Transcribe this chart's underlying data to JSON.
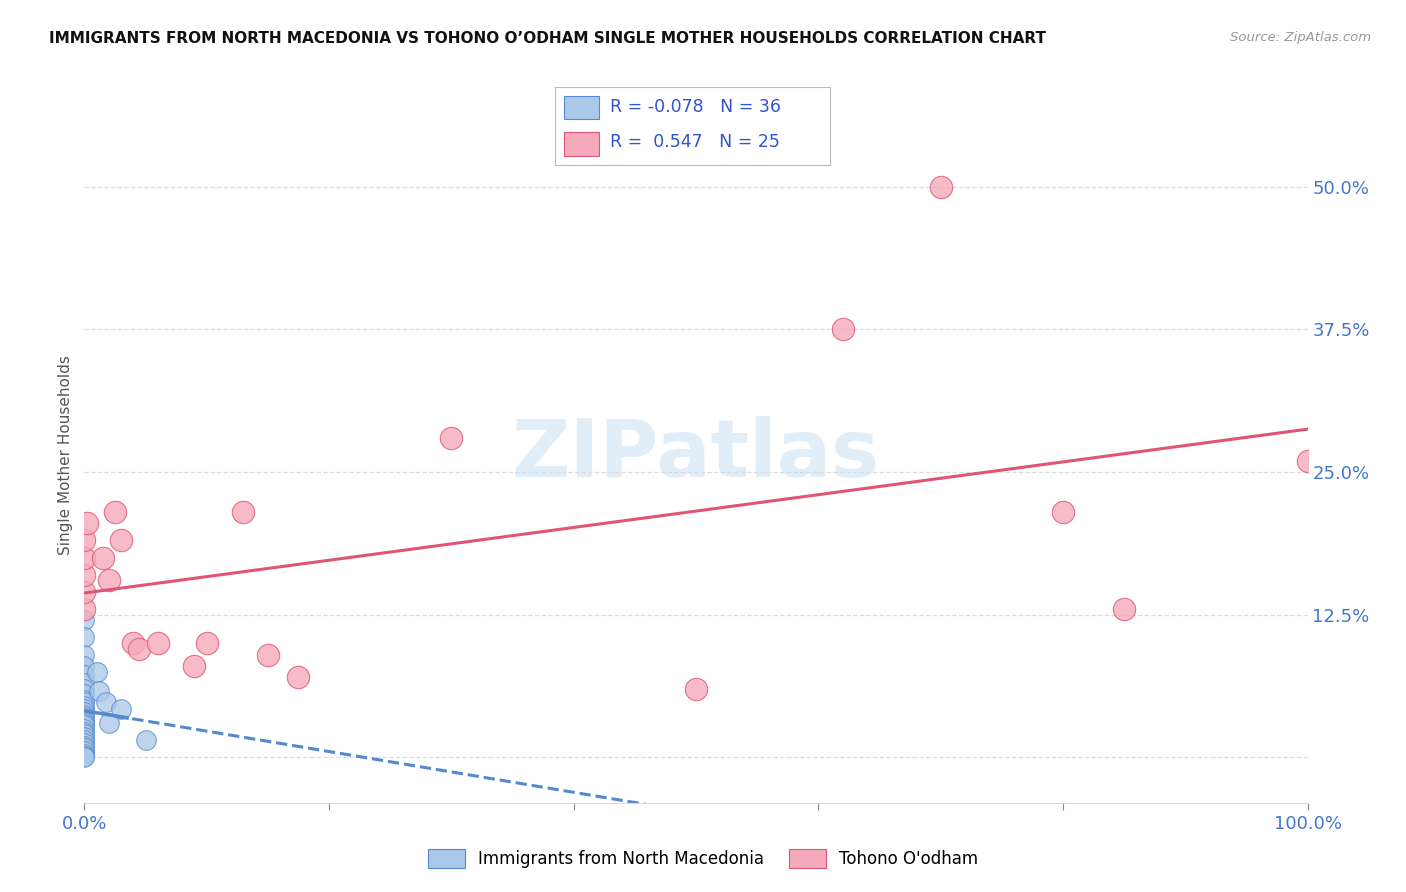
{
  "title": "IMMIGRANTS FROM NORTH MACEDONIA VS TOHONO O’ODHAM SINGLE MOTHER HOUSEHOLDS CORRELATION CHART",
  "source": "Source: ZipAtlas.com",
  "ylabel": "Single Mother Households",
  "xlim": [
    0,
    1.0
  ],
  "ylim": [
    -0.04,
    0.57
  ],
  "yticks": [
    0.0,
    0.125,
    0.25,
    0.375,
    0.5
  ],
  "ytick_labels": [
    "",
    "12.5%",
    "25.0%",
    "37.5%",
    "50.0%"
  ],
  "blue_color": "#aac8e8",
  "pink_color": "#f5aabb",
  "blue_edge_color": "#5588cc",
  "pink_edge_color": "#e05575",
  "blue_line_color": "#5588cc",
  "pink_line_color": "#e05575",
  "legend_R_blue": "-0.078",
  "legend_N_blue": "36",
  "legend_R_pink": "0.547",
  "legend_N_pink": "25",
  "blue_dots": [
    [
      0.0,
      0.12
    ],
    [
      0.0,
      0.105
    ],
    [
      0.0,
      0.09
    ],
    [
      0.0,
      0.08
    ],
    [
      0.0,
      0.072
    ],
    [
      0.0,
      0.065
    ],
    [
      0.0,
      0.06
    ],
    [
      0.0,
      0.055
    ],
    [
      0.0,
      0.05
    ],
    [
      0.0,
      0.048
    ],
    [
      0.0,
      0.045
    ],
    [
      0.0,
      0.042
    ],
    [
      0.0,
      0.04
    ],
    [
      0.0,
      0.037
    ],
    [
      0.0,
      0.035
    ],
    [
      0.0,
      0.032
    ],
    [
      0.0,
      0.03
    ],
    [
      0.0,
      0.028
    ],
    [
      0.0,
      0.025
    ],
    [
      0.0,
      0.022
    ],
    [
      0.0,
      0.02
    ],
    [
      0.0,
      0.018
    ],
    [
      0.0,
      0.015
    ],
    [
      0.0,
      0.012
    ],
    [
      0.0,
      0.01
    ],
    [
      0.0,
      0.008
    ],
    [
      0.0,
      0.005
    ],
    [
      0.0,
      0.003
    ],
    [
      0.0,
      0.001
    ],
    [
      0.0,
      0.0
    ],
    [
      0.01,
      0.075
    ],
    [
      0.012,
      0.058
    ],
    [
      0.018,
      0.048
    ],
    [
      0.02,
      0.03
    ],
    [
      0.03,
      0.042
    ],
    [
      0.05,
      0.015
    ]
  ],
  "pink_dots": [
    [
      0.0,
      0.13
    ],
    [
      0.0,
      0.145
    ],
    [
      0.0,
      0.16
    ],
    [
      0.0,
      0.175
    ],
    [
      0.0,
      0.19
    ],
    [
      0.002,
      0.205
    ],
    [
      0.015,
      0.175
    ],
    [
      0.02,
      0.155
    ],
    [
      0.025,
      0.215
    ],
    [
      0.03,
      0.19
    ],
    [
      0.04,
      0.1
    ],
    [
      0.045,
      0.095
    ],
    [
      0.06,
      0.1
    ],
    [
      0.09,
      0.08
    ],
    [
      0.1,
      0.1
    ],
    [
      0.13,
      0.215
    ],
    [
      0.15,
      0.09
    ],
    [
      0.175,
      0.07
    ],
    [
      0.3,
      0.28
    ],
    [
      0.5,
      0.06
    ],
    [
      0.62,
      0.375
    ],
    [
      0.7,
      0.5
    ],
    [
      0.8,
      0.215
    ],
    [
      0.85,
      0.13
    ],
    [
      1.0,
      0.26
    ]
  ],
  "background_color": "#ffffff",
  "watermark_text": "ZIPatlas",
  "grid_color": "#dddddd",
  "tick_color": "#4477cc",
  "label_color": "#555555"
}
